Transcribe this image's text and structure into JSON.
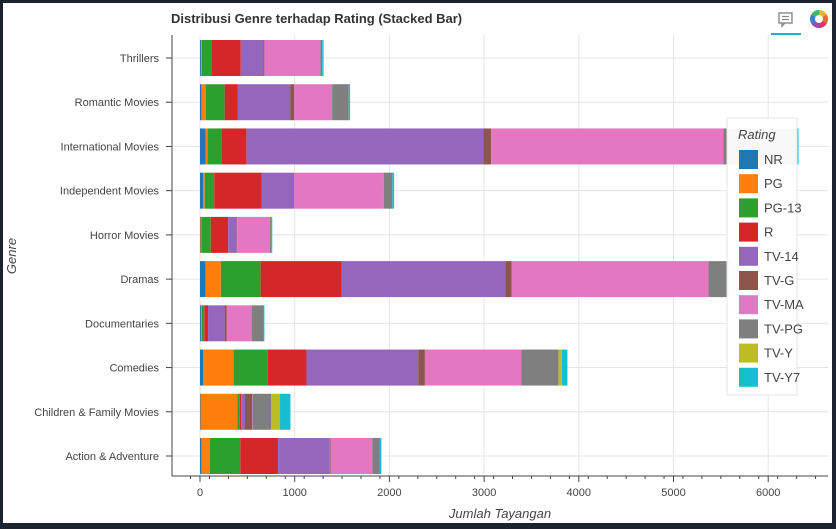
{
  "title": "Distribusi Genre terhadap Rating (Stacked Bar)",
  "toolbar": {
    "comment_icon": "comment-icon",
    "logo_icon": "bokeh-logo-icon"
  },
  "chart_data": {
    "type": "bar",
    "orientation": "horizontal",
    "stacked": true,
    "title": "Distribusi Genre terhadap Rating (Stacked Bar)",
    "xlabel": "Jumlah Tayangan",
    "ylabel": "Genre",
    "xlim": [
      -190,
      6600
    ],
    "xticks": [
      0,
      1000,
      2000,
      3000,
      4000,
      5000,
      6000
    ],
    "grid": true,
    "legend_title": "Rating",
    "legend_position": "right",
    "categories": [
      "Thrillers",
      "Romantic Movies",
      "International Movies",
      "Independent Movies",
      "Horror Movies",
      "Dramas",
      "Documentaries",
      "Comedies",
      "Children & Family Movies",
      "Action & Adventure"
    ],
    "series": [
      {
        "name": "NR",
        "color": "#1f77b4",
        "values": [
          10,
          15,
          60,
          35,
          5,
          60,
          10,
          35,
          5,
          15
        ]
      },
      {
        "name": "PG",
        "color": "#ff7f0e",
        "values": [
          10,
          45,
          20,
          15,
          8,
          160,
          10,
          320,
          390,
          90
        ]
      },
      {
        "name": "PG-13",
        "color": "#2ca02c",
        "values": [
          100,
          200,
          145,
          100,
          100,
          420,
          25,
          360,
          25,
          320
        ]
      },
      {
        "name": "R",
        "color": "#d62728",
        "values": [
          310,
          140,
          265,
          500,
          185,
          855,
          40,
          410,
          15,
          400
        ]
      },
      {
        "name": "TV-14",
        "color": "#9467bd",
        "values": [
          240,
          555,
          2500,
          335,
          90,
          1730,
          175,
          1180,
          40,
          545
        ]
      },
      {
        "name": "TV-G",
        "color": "#8c564b",
        "values": [
          10,
          40,
          85,
          10,
          5,
          65,
          20,
          70,
          75,
          10
        ]
      },
      {
        "name": "TV-MA",
        "color": "#e377c2",
        "values": [
          590,
          400,
          2450,
          945,
          345,
          2080,
          265,
          1020,
          5,
          440
        ]
      },
      {
        "name": "TV-PG",
        "color": "#7f7f7f",
        "values": [
          20,
          175,
          780,
          90,
          15,
          190,
          130,
          390,
          195,
          80
        ]
      },
      {
        "name": "TV-Y",
        "color": "#bcbd22",
        "values": [
          0,
          0,
          0,
          0,
          0,
          0,
          0,
          35,
          95,
          0
        ]
      },
      {
        "name": "TV-Y7",
        "color": "#17becf",
        "values": [
          15,
          15,
          15,
          20,
          10,
          30,
          5,
          60,
          110,
          15
        ]
      }
    ]
  }
}
